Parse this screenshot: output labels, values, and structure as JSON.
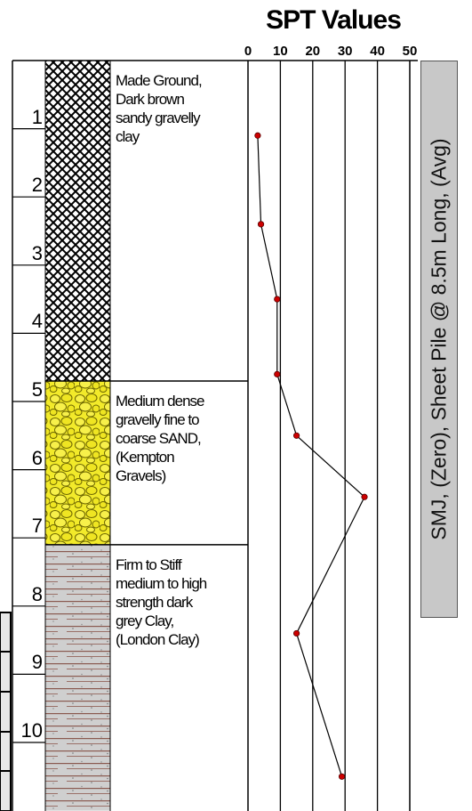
{
  "spt_title": "SPT Values",
  "spt_axis": {
    "ticks": [
      0,
      10,
      20,
      30,
      40,
      50
    ],
    "tick_labels": [
      "0",
      "10",
      "20",
      "30",
      "40",
      "50"
    ],
    "min": 0,
    "max": 50
  },
  "depth_axis": {
    "min": 0,
    "max": 11,
    "labels": [
      "1",
      "2",
      "3",
      "4",
      "5",
      "6",
      "7",
      "8",
      "9",
      "10"
    ]
  },
  "strata": [
    {
      "top": 0,
      "bottom": 4.7,
      "pattern": "crosshatch",
      "description": "Made Ground,\nDark brown\nsandy gravelly\nclay",
      "color": "#000000"
    },
    {
      "top": 4.7,
      "bottom": 7.1,
      "pattern": "gravel",
      "description": "Medium dense\ngravelly fine to\ncoarse SAND,\n(Kempton\nGravels)",
      "color": "#f2ea2a"
    },
    {
      "top": 7.1,
      "bottom": 11,
      "pattern": "clay",
      "description": "Firm to Stiff\nmedium to high\nstrength dark\ngrey Clay,\n(London Clay)",
      "color": "#bdbdbd"
    }
  ],
  "chart_data": {
    "type": "line",
    "title": "SPT Values",
    "xlabel": "",
    "ylabel": "",
    "xlim": [
      0,
      50
    ],
    "ylim": [
      0,
      11
    ],
    "y_inverted": true,
    "series": [
      {
        "points": [
          {
            "spt": 3,
            "depth": 1.1
          },
          {
            "spt": 4,
            "depth": 2.4
          },
          {
            "spt": 9,
            "depth": 3.5
          },
          {
            "spt": 9,
            "depth": 4.6
          },
          {
            "spt": 15,
            "depth": 5.5
          },
          {
            "spt": 36,
            "depth": 6.4
          },
          {
            "spt": 15,
            "depth": 8.4
          },
          {
            "spt": 29,
            "depth": 10.5
          }
        ],
        "color": "#cc0000",
        "line_color": "#000000"
      }
    ],
    "grid": true
  },
  "pile_label": "SMJ, (Zero), Sheet Pile @ 8.5m Long, (Avg)",
  "colors": {
    "grid": "#000000",
    "marker": "#cc1111",
    "label_box": "#c8c8c8"
  }
}
